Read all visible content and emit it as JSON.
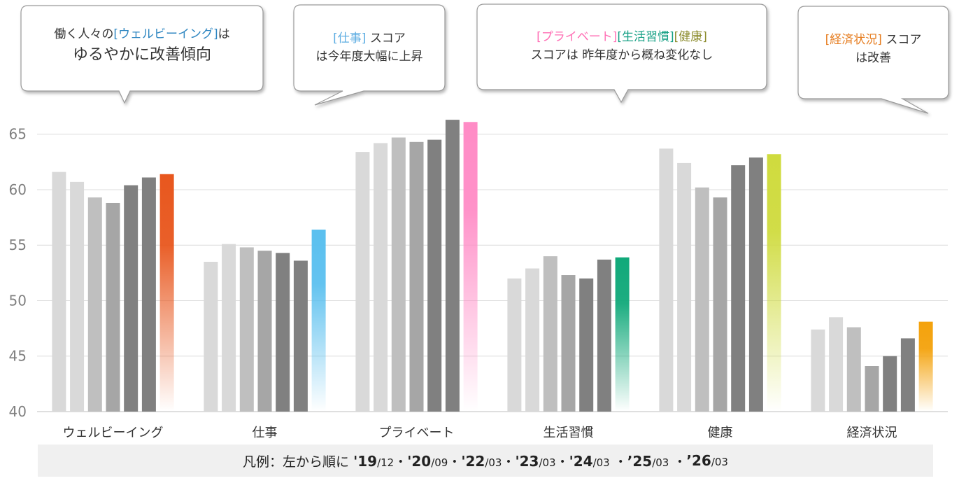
{
  "chart_data": {
    "type": "bar",
    "categories": [
      "ウェルビーイング",
      "仕事",
      "プライベート",
      "生活習慣",
      "健康",
      "経済状況"
    ],
    "series": [
      {
        "values": [
          61.6,
          53.5,
          63.4,
          52.0,
          63.7,
          47.4
        ]
      },
      {
        "values": [
          60.7,
          55.1,
          64.2,
          52.9,
          62.4,
          48.5
        ]
      },
      {
        "values": [
          59.3,
          54.8,
          64.7,
          54.0,
          60.2,
          47.6
        ]
      },
      {
        "values": [
          58.8,
          54.5,
          64.3,
          52.3,
          59.3,
          44.1
        ]
      },
      {
        "values": [
          60.4,
          54.3,
          64.5,
          52.0,
          62.2,
          45.0
        ]
      },
      {
        "values": [
          61.1,
          53.6,
          66.3,
          53.7,
          62.9,
          46.6
        ]
      },
      {
        "values": [
          61.4,
          56.4,
          66.1,
          53.9,
          63.2,
          48.1
        ]
      }
    ],
    "yticks": [
      "40",
      "45",
      "50",
      "55",
      "60",
      "65"
    ],
    "ylim": [
      40,
      67
    ],
    "grid": true,
    "colors": {
      "past_series": [
        "#d9d9d9",
        "#d9d9d9",
        "#bfbfbf",
        "#a6a6a6",
        "#808080",
        "#808080"
      ],
      "latest_by_category": [
        "#e8571e",
        "#5bc0ef",
        "#ff8cc6",
        "#11a97a",
        "#cfdb3e",
        "#f4a20c"
      ]
    }
  },
  "callouts": {
    "wellbeing": {
      "l1_pre": "働く人々の",
      "l1_hl": "[ウェルビーイング]",
      "l1_post": "は",
      "l2": "ゆるやかに改善傾向"
    },
    "work": {
      "l1_hl": "[仕事]",
      "l1_post": " スコア",
      "l2": "は今年度大幅に上昇"
    },
    "private": {
      "hl1": "[プライベート]",
      "hl2": "[生活習慣]",
      "hl3": "[健康]",
      "l2": "スコアは 昨年度から概ね変化なし"
    },
    "economy": {
      "l1_hl": "[経済状況]",
      "l1_post": " スコア",
      "l2": "は改善"
    }
  },
  "legend": {
    "prefix": "凡例：左から順に ",
    "items": [
      {
        "year": "'19",
        "month": "/12",
        "sep": "・"
      },
      {
        "year": "'20",
        "month": "/09",
        "sep": "・"
      },
      {
        "year": "'22",
        "month": "/03",
        "sep": "・"
      },
      {
        "year": "'23",
        "month": "/03",
        "sep": "・"
      },
      {
        "year": "'24",
        "month": "/03",
        "sep": " ・"
      },
      {
        "year": "’25",
        "month": "/03",
        "sep": " ・"
      },
      {
        "year": "’26",
        "month": "/03",
        "sep": ""
      }
    ]
  }
}
